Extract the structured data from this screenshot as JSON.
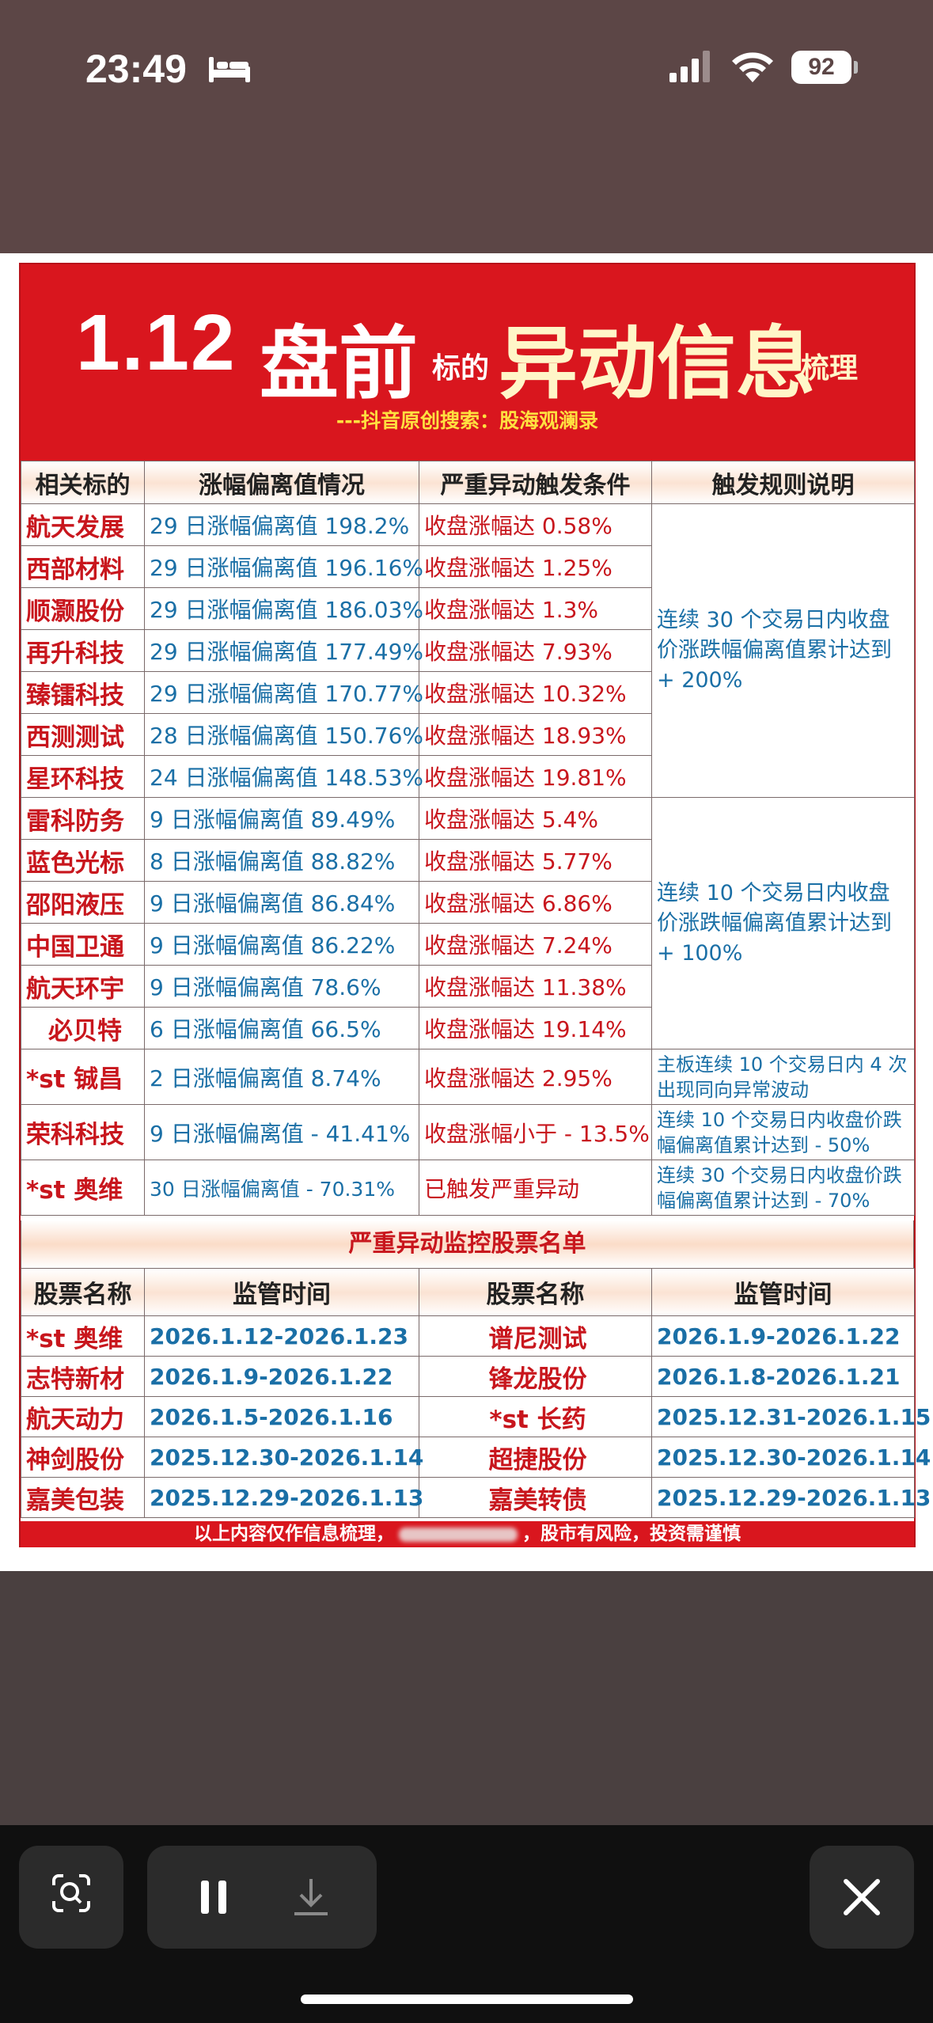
{
  "status": {
    "time": "23:49",
    "battery": "92",
    "icons": [
      "bed-icon",
      "cellular-signal-icon",
      "wifi-icon",
      "battery-icon"
    ]
  },
  "banner": {
    "date": "1.12",
    "pre": "盘前",
    "small1": "标的",
    "big": "异动信息",
    "small2": "梳理",
    "subtitle": "---抖音原创搜索：股海观澜录"
  },
  "table1": {
    "headers": [
      "相关标的",
      "涨幅偏离值情况",
      "严重异动触发条件",
      "触发规则说明"
    ],
    "rows": [
      {
        "name": "航天发展",
        "deviation": "29 日涨幅偏离值 198.2%",
        "condition": "收盘涨幅达 0.58%"
      },
      {
        "name": "西部材料",
        "deviation": "29 日涨幅偏离值 196.16%",
        "condition": "收盘涨幅达 1.25%"
      },
      {
        "name": "顺灏股份",
        "deviation": "29 日涨幅偏离值 186.03%",
        "condition": "收盘涨幅达 1.3%"
      },
      {
        "name": "再升科技",
        "deviation": "29 日涨幅偏离值 177.49%",
        "condition": "收盘涨幅达 7.93%"
      },
      {
        "name": "臻镭科技",
        "deviation": "29 日涨幅偏离值 170.77%",
        "condition": "收盘涨幅达 10.32%"
      },
      {
        "name": "西测测试",
        "deviation": "28 日涨幅偏离值 150.76%",
        "condition": "收盘涨幅达 18.93%"
      },
      {
        "name": "星环科技",
        "deviation": "24 日涨幅偏离值 148.53%",
        "condition": "收盘涨幅达 19.81%"
      },
      {
        "name": "雷科防务",
        "deviation": "9 日涨幅偏离值 89.49%",
        "condition": "收盘涨幅达 5.4%"
      },
      {
        "name": "蓝色光标",
        "deviation": "8 日涨幅偏离值 88.82%",
        "condition": "收盘涨幅达 5.77%"
      },
      {
        "name": "邵阳液压",
        "deviation": "9 日涨幅偏离值 86.84%",
        "condition": "收盘涨幅达 6.86%"
      },
      {
        "name": "中国卫通",
        "deviation": "9 日涨幅偏离值 86.22%",
        "condition": "收盘涨幅达 7.24%"
      },
      {
        "name": "航天环宇",
        "deviation": "9 日涨幅偏离值 78.6%",
        "condition": "收盘涨幅达 11.38%"
      },
      {
        "name": "必贝特",
        "deviation": "6 日涨幅偏离值 66.5%",
        "condition": "收盘涨幅达 19.14%"
      },
      {
        "name": "*st 铖昌",
        "deviation": "2 日涨幅偏离值 8.74%",
        "condition": "收盘涨幅达 2.95%",
        "rule": "主板连续 10 个交易日内 4 次出现同向异常波动"
      },
      {
        "name": "荣科科技",
        "deviation": "9 日涨幅偏离值 - 41.41%",
        "condition": "收盘涨幅小于 - 13.5%",
        "rule": "连续 10 个交易日内收盘价跌幅偏离值累计达到 - 50%"
      },
      {
        "name": "*st 奥维",
        "deviation": "30 日涨幅偏离值 - 70.31%",
        "condition": "已触发严重异动",
        "rule": "连续 30 个交易日内收盘价跌幅偏离值累计达到 - 70%"
      }
    ],
    "rule_group1": "连续 30 个交易日内收盘价涨跌幅偏离值累计达到 + 200%",
    "rule_group2": "连续 10 个交易日内收盘价涨跌幅偏离值累计达到 + 100%"
  },
  "section_title": "严重异动监控股票名单",
  "table2": {
    "headers": [
      "股票名称",
      "监管时间",
      "股票名称",
      "监管时间"
    ],
    "rows": [
      {
        "name1": "*st 奥维",
        "time1": "2026.1.12-2026.1.23",
        "name2": "谱尼测试",
        "time2": "2026.1.9-2026.1.22"
      },
      {
        "name1": "志特新材",
        "time1": "2026.1.9-2026.1.22",
        "name2": "锋龙股份",
        "time2": "2026.1.8-2026.1.21"
      },
      {
        "name1": "航天动力",
        "time1": "2026.1.5-2026.1.16",
        "name2": "*st 长药",
        "time2": "2025.12.31-2026.1.15"
      },
      {
        "name1": "神剑股份",
        "time1": "2025.12.30-2026.1.14",
        "name2": "超捷股份",
        "time2": "2025.12.30-2026.1.14"
      },
      {
        "name1": "嘉美包装",
        "time1": "2025.12.29-2026.1.13",
        "name2": "嘉美转债",
        "time2": "2025.12.29-2026.1.13"
      }
    ]
  },
  "footer": {
    "left": "以上内容仅作信息梳理，",
    "right": "，股市有风险，投资需谨慎"
  },
  "bottom_bar": {
    "icons": [
      "visual-lookup-icon",
      "pause-icon",
      "download-icon",
      "close-icon"
    ]
  }
}
